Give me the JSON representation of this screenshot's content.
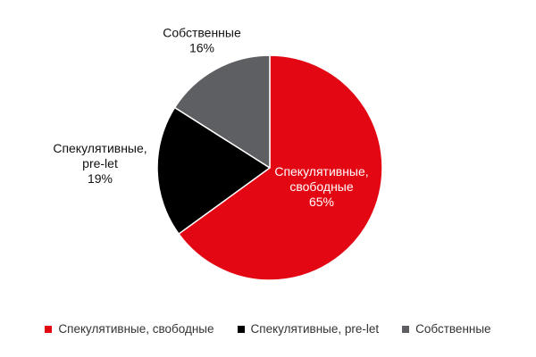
{
  "chart_data": {
    "type": "pie",
    "title": "",
    "slices": [
      {
        "name": "Спекулятивные, свободные",
        "label_lines": [
          "Спекулятивные,",
          "свободные"
        ],
        "value": 65,
        "value_label": "65%",
        "color": "#e30613"
      },
      {
        "name": "Спекулятивные, pre-let",
        "label_lines": [
          "Спекулятивные,",
          "pre-let"
        ],
        "value": 19,
        "value_label": "19%",
        "color": "#000000"
      },
      {
        "name": "Собственные",
        "label_lines": [
          "Собственные"
        ],
        "value": 16,
        "value_label": "16%",
        "color": "#5e5f62"
      }
    ],
    "legend_position": "bottom",
    "start_angle_deg": 0,
    "direction": "clockwise"
  }
}
